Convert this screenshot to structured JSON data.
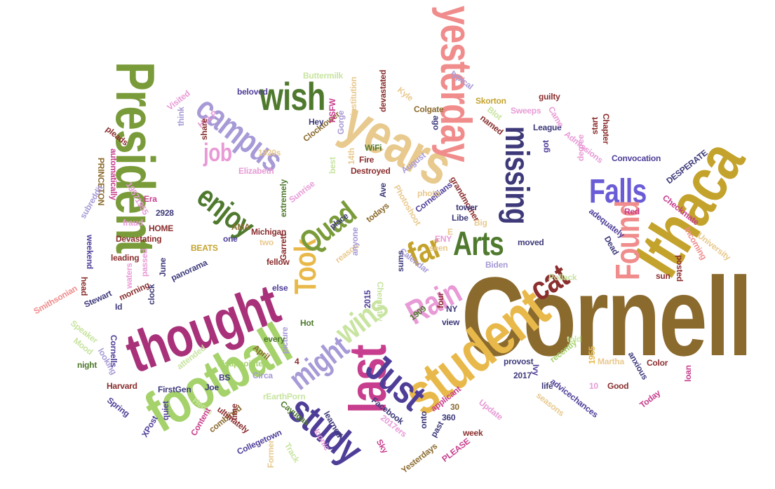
{
  "words": [
    {
      "text": "Cornell",
      "color": "#8b6a2e"
    },
    {
      "text": "student",
      "color": "#e8b94a"
    },
    {
      "text": "thought",
      "color": "#a8317a"
    },
    {
      "text": "football",
      "color": "#a5d26a"
    },
    {
      "text": "President",
      "color": "#7a9b3a"
    },
    {
      "text": "Ithaca",
      "color": "#c4a32c"
    },
    {
      "text": "years",
      "color": "#e8c98e"
    },
    {
      "text": "yesterday",
      "color": "#f08c8c"
    },
    {
      "text": "last",
      "color": "#c83e8e"
    },
    {
      "text": "study",
      "color": "#4f3e98"
    },
    {
      "text": "Just",
      "color": "#4f3e98"
    },
    {
      "text": "wish",
      "color": "#4f7a2e"
    },
    {
      "text": "campus",
      "color": "#a79ad6"
    },
    {
      "text": "missing",
      "color": "#3e3a7a"
    },
    {
      "text": "Falls",
      "color": "#6a5cd6"
    },
    {
      "text": "Found",
      "color": "#f08c8c"
    },
    {
      "text": "Arts",
      "color": "#4f7a2e"
    },
    {
      "text": "cat",
      "color": "#8b2e2e"
    },
    {
      "text": "far",
      "color": "#c4a32c"
    },
    {
      "text": "Rain",
      "color": "#e89ad6"
    },
    {
      "text": "wins",
      "color": "#c8e4a0"
    },
    {
      "text": "might",
      "color": "#a79ad6"
    },
    {
      "text": "Took",
      "color": "#e8b94a"
    },
    {
      "text": "Quad",
      "color": "#7a9b3a"
    },
    {
      "text": "enjoy",
      "color": "#4f7a2e"
    },
    {
      "text": "job",
      "color": "#e89ad6"
    },
    {
      "text": "Convocation",
      "color": "#4f3e98"
    },
    {
      "text": "League",
      "color": "#3e3a7a"
    },
    {
      "text": "Skorton",
      "color": "#c4a32c"
    },
    {
      "text": "Sweeps",
      "color": "#e89ad6"
    },
    {
      "text": "Colgate",
      "color": "#8b6a2e"
    },
    {
      "text": "Chemistry",
      "color": "#c8e4a0"
    },
    {
      "text": "Calendar",
      "color": "#a79ad6"
    },
    {
      "text": "Smithsonian",
      "color": "#f08c8c"
    },
    {
      "text": "Stewart",
      "color": "#3e3a7a"
    },
    {
      "text": "panorama",
      "color": "#3e3a7a"
    },
    {
      "text": "Devastating",
      "color": "#8b2e2e"
    },
    {
      "text": "Michigan",
      "color": "#8b2e2e"
    },
    {
      "text": "Cornellians",
      "color": "#4f3e98"
    },
    {
      "text": "Destroyed",
      "color": "#8b2e2e"
    },
    {
      "text": "Elizabeth",
      "color": "#e89ad6"
    },
    {
      "text": "Clocktower",
      "color": "#8b6a2e"
    },
    {
      "text": "Buttermilk",
      "color": "#c8e4a0"
    },
    {
      "text": "devastated",
      "color": "#8b2e2e"
    },
    {
      "text": "institution",
      "color": "#e8c98e"
    },
    {
      "text": "beloved",
      "color": "#4f3e98"
    },
    {
      "text": "typical",
      "color": "#a79ad6"
    },
    {
      "text": "guilty",
      "color": "#8b2e2e"
    },
    {
      "text": "Chapter",
      "color": "#8b2e2e"
    },
    {
      "text": "DESPERATE",
      "color": "#3e3a7a"
    },
    {
      "text": "Checkmate",
      "color": "#c83e8e"
    },
    {
      "text": "Incoming",
      "color": "#f08c8c"
    },
    {
      "text": "University",
      "color": "#e8c98e"
    },
    {
      "text": "adequately",
      "color": "#4f3e98"
    },
    {
      "text": "Pollack",
      "color": "#c8e4a0"
    },
    {
      "text": "Biden",
      "color": "#a79ad6"
    },
    {
      "text": "provost",
      "color": "#3e3a7a"
    },
    {
      "text": "Martha",
      "color": "#e8c98e"
    },
    {
      "text": "Color",
      "color": "#8b2e2e"
    },
    {
      "text": "anxious",
      "color": "#3e3a7a"
    },
    {
      "text": "advicechances",
      "color": "#4f3e98"
    },
    {
      "text": "Good",
      "color": "#8b2e2e"
    },
    {
      "text": "seasons",
      "color": "#e8c98e"
    },
    {
      "text": "Update",
      "color": "#e89ad6"
    },
    {
      "text": "applicant",
      "color": "#c83e8e"
    },
    {
      "text": "Facebook",
      "color": "#3e3a7a"
    },
    {
      "text": "Collegetown",
      "color": "#4f3e98"
    },
    {
      "text": "Cayugas",
      "color": "#4f7a2e"
    },
    {
      "text": "combined",
      "color": "#8b6a2e"
    },
    {
      "text": "ultimately",
      "color": "#8b2e2e"
    },
    {
      "text": "rEarthPorn",
      "color": "#c8e4a0"
    },
    {
      "text": "disappointed",
      "color": "#a5d26a"
    },
    {
      "text": "FirstGen",
      "color": "#3e3a7a"
    },
    {
      "text": "Harvard",
      "color": "#8b2e2e"
    },
    {
      "text": "Spring",
      "color": "#4f3e98"
    },
    {
      "text": "attended",
      "color": "#c8e4a0"
    },
    {
      "text": "looking",
      "color": "#a79ad6"
    },
    {
      "text": "night",
      "color": "#4f7a2e"
    },
    {
      "text": "Cornells",
      "color": "#4f3e98"
    },
    {
      "text": "Speaker",
      "color": "#c8e4a0"
    },
    {
      "text": "Yesterdays",
      "color": "#8b6a2e"
    },
    {
      "text": "PLEASE",
      "color": "#c83e8e"
    },
    {
      "text": "Former",
      "color": "#e8c98e"
    },
    {
      "text": "PRINCETON",
      "color": "#8b6a2e"
    },
    {
      "text": "automatically",
      "color": "#c83e8e"
    },
    {
      "text": "subreddit",
      "color": "#a79ad6"
    },
    {
      "text": "weekend",
      "color": "#4f3e98"
    },
    {
      "text": "morning",
      "color": "#8b2e2e"
    },
    {
      "text": "Admissions",
      "color": "#e89ad6"
    },
    {
      "text": "grandmother",
      "color": "#8b2e2e"
    },
    {
      "text": "Photoshoot",
      "color": "#e8c98e"
    },
    {
      "text": "Sunrise",
      "color": "#e89ad6"
    },
    {
      "text": "extremely",
      "color": "#4f7a2e"
    },
    {
      "text": "Gorge",
      "color": "#a79ad6"
    },
    {
      "text": "NSFW",
      "color": "#c83e8e"
    },
    {
      "text": "Visited",
      "color": "#e89ad6"
    },
    {
      "text": "Circa",
      "color": "#a79ad6"
    },
    {
      "text": "picture",
      "color": "#a79ad6"
    },
    {
      "text": "reason",
      "color": "#e8c98e"
    },
    {
      "text": "fellow",
      "color": "#8b2e2e"
    },
    {
      "text": "todays",
      "color": "#8b6a2e"
    },
    {
      "text": "anyone",
      "color": "#a79ad6"
    },
    {
      "text": "Garrett",
      "color": "#8b2e2e"
    },
    {
      "text": "leading",
      "color": "#8b2e2e"
    },
    {
      "text": "posted",
      "color": "#8b2e2e"
    },
    {
      "text": "recently",
      "color": "#a5d26a"
    },
    {
      "text": "Today",
      "color": "#c83e8e"
    },
    {
      "text": "1920s",
      "color": "#e8c98e"
    },
    {
      "text": "HELP",
      "color": "#e89ad6"
    },
    {
      "text": "HOME",
      "color": "#8b2e2e"
    },
    {
      "text": "BEATS",
      "color": "#c4a32c"
    },
    {
      "text": "2928",
      "color": "#3e3a7a"
    },
    {
      "text": "place",
      "color": "#3e3a7a"
    },
    {
      "text": "view",
      "color": "#3e3a7a"
    },
    {
      "text": "moved",
      "color": "#3e3a7a"
    },
    {
      "text": "sun",
      "color": "#8b2e2e"
    },
    {
      "text": "NY",
      "color": "#3e3a7a"
    },
    {
      "text": "four",
      "color": "#8b2e2e"
    },
    {
      "text": "seen",
      "color": "#e8c98e"
    },
    {
      "text": "Big",
      "color": "#e8c98e"
    },
    {
      "text": "Libe",
      "color": "#3e3a7a"
    },
    {
      "text": "tower",
      "color": "#3e3a7a"
    },
    {
      "text": "photo",
      "color": "#e8c98e"
    },
    {
      "text": "Ave",
      "color": "#3e3a7a"
    },
    {
      "text": "August",
      "color": "#a79ad6"
    },
    {
      "text": "Fire",
      "color": "#8b2e2e"
    },
    {
      "text": "WiFi",
      "color": "#4f7a2e"
    },
    {
      "text": "14th",
      "color": "#e8c98e"
    },
    {
      "text": "Hey",
      "color": "#3e3a7a"
    },
    {
      "text": "share",
      "color": "#8b2e2e"
    },
    {
      "text": "think",
      "color": "#a79ad6"
    },
    {
      "text": "pleads",
      "color": "#8b2e2e"
    },
    {
      "text": "named",
      "color": "#8b2e2e"
    },
    {
      "text": "Kyle",
      "color": "#e8c98e"
    },
    {
      "text": "Blot",
      "color": "#c8e4a0"
    },
    {
      "text": "got",
      "color": "#4f3e98"
    },
    {
      "text": "start",
      "color": "#8b2e2e"
    },
    {
      "text": "degree",
      "color": "#e89ad6"
    },
    {
      "text": "Came",
      "color": "#e89ad6"
    },
    {
      "text": "Red",
      "color": "#c83e8e"
    },
    {
      "text": "Dead",
      "color": "#3e3a7a"
    },
    {
      "text": "Era",
      "color": "#c83e8e"
    },
    {
      "text": "fraud",
      "color": "#e89ad6"
    },
    {
      "text": "AMA",
      "color": "#8b6a2e"
    },
    {
      "text": "one",
      "color": "#4f3e98"
    },
    {
      "text": "two",
      "color": "#e8c98e"
    },
    {
      "text": "else",
      "color": "#4f3e98"
    },
    {
      "text": "Hot",
      "color": "#4f7a2e"
    },
    {
      "text": "every",
      "color": "#4f7a2e"
    },
    {
      "text": "April",
      "color": "#8b6a2e"
    },
    {
      "text": "BS",
      "color": "#3e3a7a"
    },
    {
      "text": "Joe",
      "color": "#3e3a7a"
    },
    {
      "text": "Heres",
      "color": "#c8e4a0"
    },
    {
      "text": "time",
      "color": "#8b2e2e"
    },
    {
      "text": "Content",
      "color": "#c83e8e"
    },
    {
      "text": "quiet",
      "color": "#4f3e98"
    },
    {
      "text": "XPost",
      "color": "#4f3e98"
    },
    {
      "text": "Mood",
      "color": "#c8e4a0"
    },
    {
      "text": "head",
      "color": "#8b2e2e"
    },
    {
      "text": "clock",
      "color": "#3e3a7a"
    },
    {
      "text": "June",
      "color": "#3e3a7a"
    },
    {
      "text": "passed",
      "color": "#e89ad6"
    },
    {
      "text": "waters",
      "color": "#e89ad6"
    },
    {
      "text": "Id",
      "color": "#3e3a7a"
    },
    {
      "text": "2015",
      "color": "#4f3e98"
    },
    {
      "text": "1909",
      "color": "#4f7a2e"
    },
    {
      "text": "sums",
      "color": "#3e3a7a"
    },
    {
      "text": "2017",
      "color": "#3e3a7a"
    },
    {
      "text": "Ivy",
      "color": "#4f3e98"
    },
    {
      "text": "life",
      "color": "#3e3a7a"
    },
    {
      "text": "told",
      "color": "#c8e4a0"
    },
    {
      "text": "1955",
      "color": "#e8b94a"
    },
    {
      "text": "10",
      "color": "#e89ad6"
    },
    {
      "text": "loan",
      "color": "#c83e8e"
    },
    {
      "text": "30",
      "color": "#8b6a2e"
    },
    {
      "text": "360",
      "color": "#3e3a7a"
    },
    {
      "text": "onto",
      "color": "#3e3a7a"
    },
    {
      "text": "past",
      "color": "#3e3a7a"
    },
    {
      "text": "week",
      "color": "#8b2e2e"
    },
    {
      "text": "2017ers",
      "color": "#e89ad6"
    },
    {
      "text": "Sky",
      "color": "#c83e8e"
    },
    {
      "text": "learned",
      "color": "#3e3a7a"
    },
    {
      "text": "Iconic",
      "color": "#e89ad6"
    },
    {
      "text": "Track",
      "color": "#c8e4a0"
    },
    {
      "text": "4",
      "color": "#8b2e2e"
    },
    {
      "text": "E",
      "color": "#e8c98e"
    },
    {
      "text": "ago",
      "color": "#3e3a7a"
    },
    {
      "text": "best",
      "color": "#c8e4a0"
    },
    {
      "text": "19571955",
      "color": "#e89ad6"
    },
    {
      "text": "ENY",
      "color": "#e89ad6"
    }
  ]
}
